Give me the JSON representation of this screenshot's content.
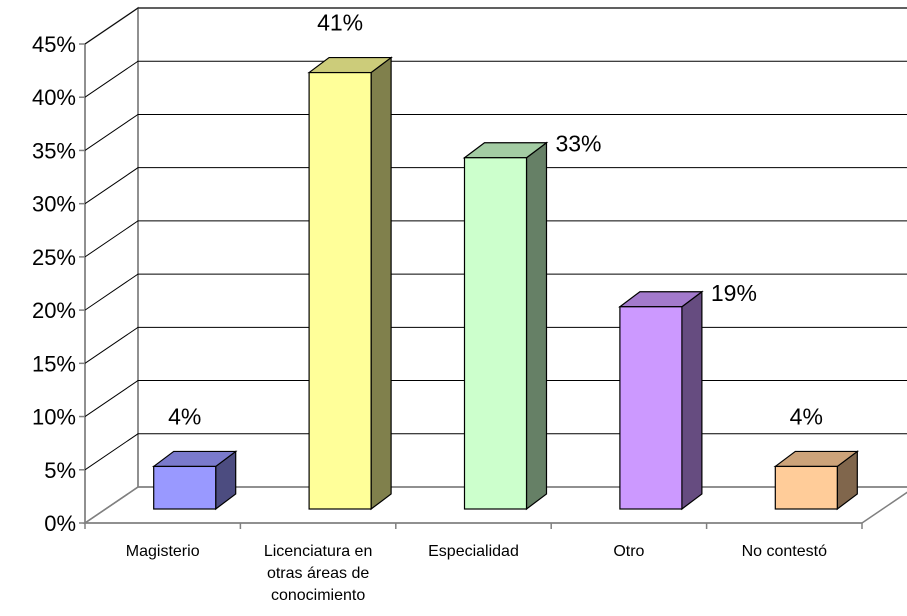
{
  "chart_data": {
    "type": "bar",
    "style": "3d-column",
    "categories": [
      [
        "Magisterio"
      ],
      [
        "Licenciatura en",
        "otras áreas de",
        "conocimiento"
      ],
      [
        "Especialidad"
      ],
      [
        "Otro"
      ],
      [
        "No contestó"
      ]
    ],
    "values": [
      4,
      41,
      33,
      19,
      4
    ],
    "data_labels": [
      "4%",
      "41%",
      "33%",
      "19%",
      "4%"
    ],
    "ylim": [
      0,
      45
    ],
    "yticks": [
      0,
      5,
      10,
      15,
      20,
      25,
      30,
      35,
      40,
      45
    ],
    "ytick_labels": [
      "0%",
      "5%",
      "10%",
      "15%",
      "20%",
      "25%",
      "30%",
      "35%",
      "40%",
      "45%"
    ],
    "grid": true,
    "legend": "none",
    "colors": {
      "fronts": [
        "#9999ff",
        "#ffff99",
        "#ccffcc",
        "#cc99ff",
        "#ffcc99"
      ],
      "tops": [
        "#7a7acc",
        "#cccc7a",
        "#a3cca3",
        "#a37acc",
        "#cca37a"
      ],
      "sides": [
        "#4c4c80",
        "#80804c",
        "#668066",
        "#664c80",
        "#80664c"
      ],
      "axis": "#808080",
      "grid": "#000000"
    }
  }
}
